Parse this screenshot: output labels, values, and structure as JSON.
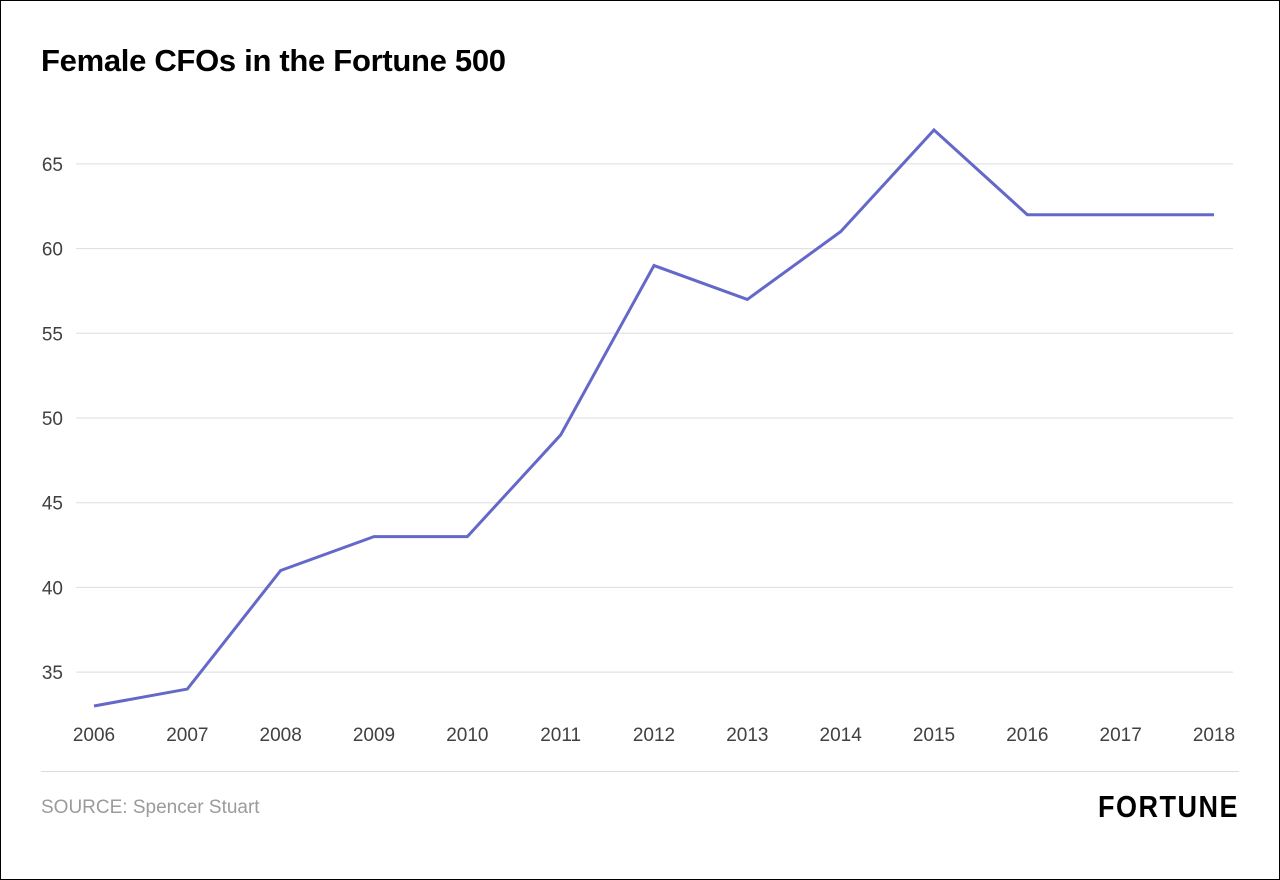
{
  "page": {
    "title": "Female CFOs in the Fortune 500"
  },
  "footer": {
    "source": "SOURCE: Spencer Stuart",
    "brand": "FORTUNE"
  },
  "chart_data": {
    "type": "line",
    "title": "Female CFOs in the Fortune 500",
    "categories": [
      "2006",
      "2007",
      "2008",
      "2009",
      "2010",
      "2011",
      "2012",
      "2013",
      "2014",
      "2015",
      "2016",
      "2017",
      "2018"
    ],
    "values": [
      33,
      34,
      41,
      43,
      43,
      49,
      59,
      57,
      61,
      67,
      62,
      62,
      62
    ],
    "xlabel": "",
    "ylabel": "",
    "ylim": [
      33,
      67
    ],
    "yticks": [
      35,
      40,
      45,
      50,
      55,
      60,
      65
    ],
    "grid": true,
    "legend": "none",
    "line_color": "#6468c8",
    "gridline_color": "#dddddd",
    "tick_label_color": "#404040"
  }
}
